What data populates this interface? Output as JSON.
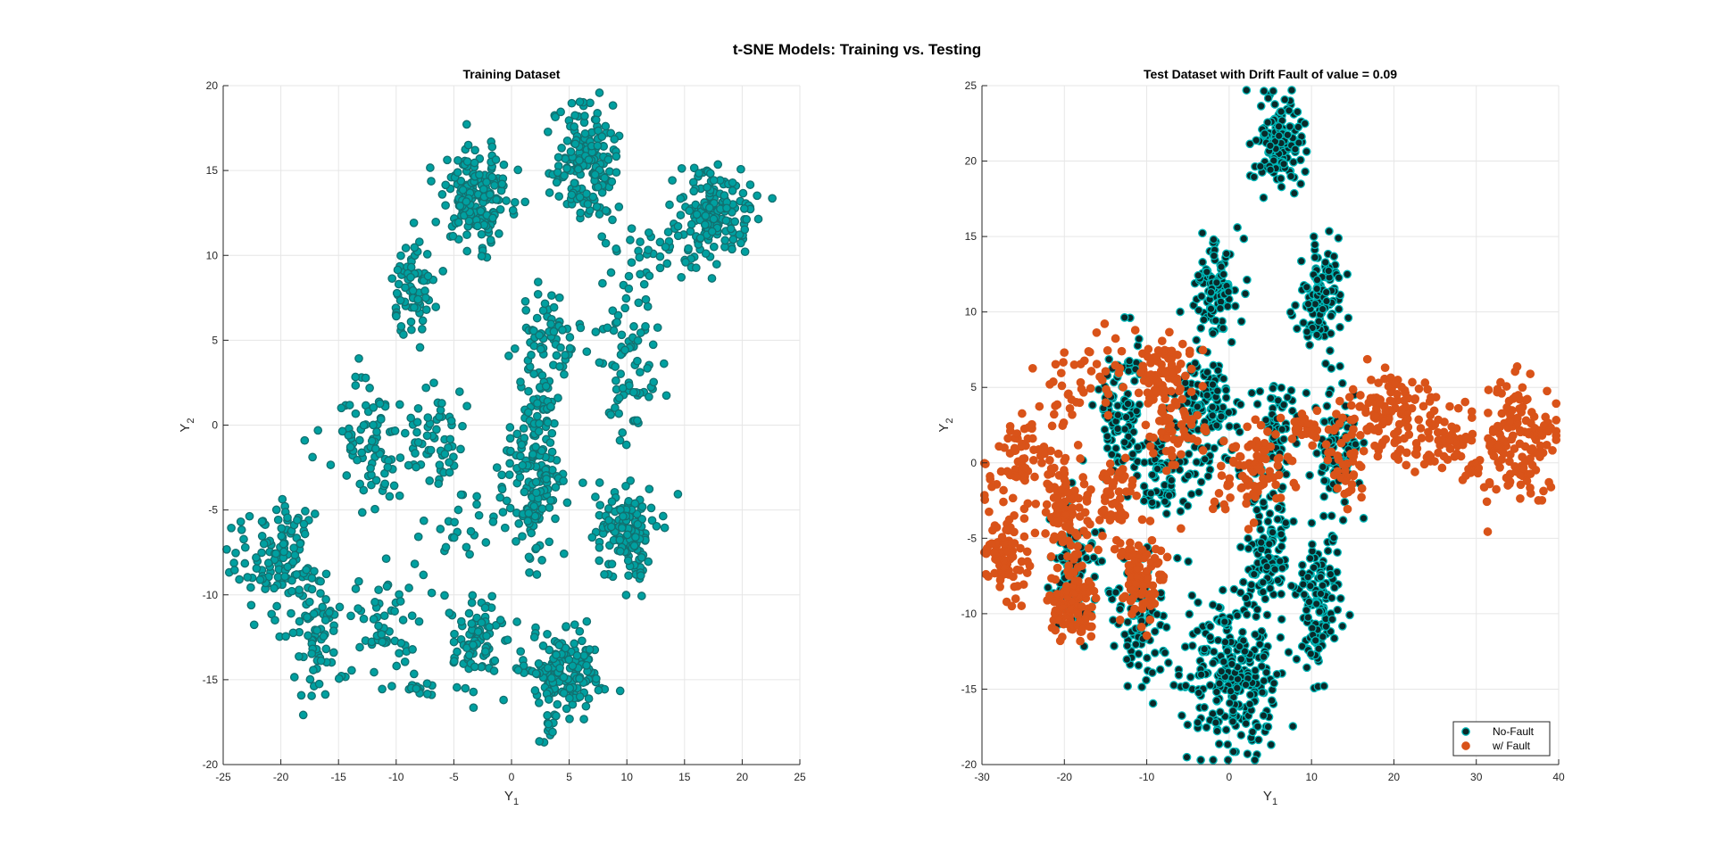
{
  "figure": {
    "title": "t-SNE Models: Training vs. Testing"
  },
  "chart_data": [
    {
      "type": "scatter",
      "title": "Training Dataset",
      "xlabel": "Y",
      "xlabel_sub": "1",
      "ylabel": "Y",
      "ylabel_sub": "2",
      "xlim": [
        -25,
        25
      ],
      "ylim": [
        -20,
        20
      ],
      "xticks": [
        -25,
        -20,
        -15,
        -10,
        -5,
        0,
        5,
        10,
        15,
        20,
        25
      ],
      "yticks": [
        -20,
        -15,
        -10,
        -5,
        0,
        5,
        10,
        15,
        20
      ],
      "grid": true,
      "legend": null,
      "series": [
        {
          "color": "#00a0a0",
          "edge": "#127070",
          "clusters": [
            {
              "cx": -3,
              "cy": 13.5,
              "sx": 1.6,
              "sy": 1.4,
              "n": 180
            },
            {
              "cx": 6.5,
              "cy": 15.5,
              "sx": 1.4,
              "sy": 1.8,
              "n": 170
            },
            {
              "cx": 17.5,
              "cy": 12.5,
              "sx": 1.6,
              "sy": 1.3,
              "n": 170
            },
            {
              "cx": 12,
              "cy": 10,
              "sx": 2.2,
              "sy": 0.8,
              "n": 25
            },
            {
              "cx": -8.5,
              "cy": 8,
              "sx": 1.0,
              "sy": 1.4,
              "n": 70
            },
            {
              "cx": 3,
              "cy": 5,
              "sx": 1.4,
              "sy": 1.6,
              "n": 70
            },
            {
              "cx": 10,
              "cy": 4,
              "sx": 1.4,
              "sy": 2.2,
              "n": 80
            },
            {
              "cx": -12,
              "cy": -1,
              "sx": 2.0,
              "sy": 1.8,
              "n": 90
            },
            {
              "cx": -6.5,
              "cy": -0.5,
              "sx": 1.2,
              "sy": 1.5,
              "n": 50
            },
            {
              "cx": 2,
              "cy": -3.5,
              "sx": 1.2,
              "sy": 2.0,
              "n": 150
            },
            {
              "cx": 10,
              "cy": -6.5,
              "sx": 1.3,
              "sy": 1.5,
              "n": 150
            },
            {
              "cx": -20,
              "cy": -8,
              "sx": 1.6,
              "sy": 1.8,
              "n": 120
            },
            {
              "cx": -17,
              "cy": -12.5,
              "sx": 1.2,
              "sy": 1.5,
              "n": 60
            },
            {
              "cx": -11,
              "cy": -12,
              "sx": 1.3,
              "sy": 1.8,
              "n": 55
            },
            {
              "cx": -3,
              "cy": -13,
              "sx": 1.3,
              "sy": 1.5,
              "n": 80
            },
            {
              "cx": 4.5,
              "cy": -14.5,
              "sx": 1.7,
              "sy": 1.3,
              "n": 160
            },
            {
              "cx": -4,
              "cy": -6,
              "sx": 1.5,
              "sy": 1.2,
              "n": 25
            },
            {
              "cx": 2.5,
              "cy": 1,
              "sx": 0.8,
              "sy": 1.2,
              "n": 30
            },
            {
              "cx": -8.5,
              "cy": -15.5,
              "sx": 0.8,
              "sy": 0.3,
              "n": 15
            },
            {
              "cx": -24,
              "cy": -7.5,
              "sx": 0.6,
              "sy": 1.2,
              "n": 10
            },
            {
              "cx": 3.5,
              "cy": -18,
              "sx": 0.4,
              "sy": 0.6,
              "n": 8
            }
          ]
        }
      ]
    },
    {
      "type": "scatter",
      "title": "Test Dataset with Drift Fault of value = 0.09",
      "xlabel": "Y",
      "xlabel_sub": "1",
      "ylabel": "Y",
      "ylabel_sub": "2",
      "xlim": [
        -30,
        40
      ],
      "ylim": [
        -20,
        25
      ],
      "xticks": [
        -30,
        -20,
        -10,
        0,
        10,
        20,
        30,
        40
      ],
      "yticks": [
        -20,
        -15,
        -10,
        -5,
        0,
        5,
        10,
        15,
        20,
        25
      ],
      "grid": true,
      "legend": "bottom-right",
      "series": [
        {
          "name": "No-Fault",
          "color": "#0a2a2a",
          "edge": "#00b8b8",
          "clusters": [
            {
              "cx": 6,
              "cy": 21,
              "sx": 1.4,
              "sy": 1.6,
              "n": 130
            },
            {
              "cx": 11,
              "cy": 11,
              "sx": 1.3,
              "sy": 2.0,
              "n": 120
            },
            {
              "cx": -1.5,
              "cy": 11.5,
              "sx": 1.4,
              "sy": 1.6,
              "n": 110
            },
            {
              "cx": -3,
              "cy": 3.5,
              "sx": 2.0,
              "sy": 2.0,
              "n": 140
            },
            {
              "cx": -13,
              "cy": 3.5,
              "sx": 1.5,
              "sy": 2.0,
              "n": 100
            },
            {
              "cx": 5.5,
              "cy": 2,
              "sx": 1.2,
              "sy": 1.8,
              "n": 60
            },
            {
              "cx": 13,
              "cy": 1,
              "sx": 1.3,
              "sy": 1.8,
              "n": 90
            },
            {
              "cx": -8,
              "cy": -1,
              "sx": 1.6,
              "sy": 1.2,
              "n": 70
            },
            {
              "cx": 4.5,
              "cy": -6,
              "sx": 1.2,
              "sy": 2.0,
              "n": 110
            },
            {
              "cx": 11,
              "cy": -9,
              "sx": 1.4,
              "sy": 2.2,
              "n": 130
            },
            {
              "cx": -19,
              "cy": -7,
              "sx": 1.5,
              "sy": 2.0,
              "n": 90
            },
            {
              "cx": -11,
              "cy": -10,
              "sx": 1.6,
              "sy": 2.0,
              "n": 90
            },
            {
              "cx": 0.5,
              "cy": -14,
              "sx": 3.2,
              "sy": 2.6,
              "n": 260
            }
          ]
        },
        {
          "name": "w/ Fault",
          "color": "#d95319",
          "edge": "#d95319",
          "clusters": [
            {
              "cx": -27,
              "cy": -6,
              "sx": 1.2,
              "sy": 1.5,
              "n": 80
            },
            {
              "cx": -25,
              "cy": 0,
              "sx": 2.4,
              "sy": 1.8,
              "n": 70
            },
            {
              "cx": -20,
              "cy": -3.5,
              "sx": 1.2,
              "sy": 2.0,
              "n": 100
            },
            {
              "cx": -19,
              "cy": -9.5,
              "sx": 1.4,
              "sy": 1.2,
              "n": 90
            },
            {
              "cx": -10.5,
              "cy": -7.5,
              "sx": 1.4,
              "sy": 1.6,
              "n": 90
            },
            {
              "cx": -17,
              "cy": 5.5,
              "sx": 2.5,
              "sy": 1.5,
              "n": 45
            },
            {
              "cx": -8,
              "cy": 6,
              "sx": 1.8,
              "sy": 1.6,
              "n": 80
            },
            {
              "cx": -14,
              "cy": -2.5,
              "sx": 1.5,
              "sy": 1.5,
              "n": 50
            },
            {
              "cx": -6,
              "cy": 2,
              "sx": 1.8,
              "sy": 1.2,
              "n": 50
            },
            {
              "cx": 2.5,
              "cy": -0.5,
              "sx": 2.2,
              "sy": 1.4,
              "n": 80
            },
            {
              "cx": 9,
              "cy": 2,
              "sx": 2.0,
              "sy": 1.0,
              "n": 40
            },
            {
              "cx": 19,
              "cy": 3,
              "sx": 2.4,
              "sy": 1.5,
              "n": 110
            },
            {
              "cx": 26,
              "cy": 1.5,
              "sx": 2.5,
              "sy": 1.6,
              "n": 80
            },
            {
              "cx": 35,
              "cy": 1.5,
              "sx": 2.5,
              "sy": 2.0,
              "n": 150
            },
            {
              "cx": 15,
              "cy": 0,
              "sx": 1.2,
              "sy": 1.2,
              "n": 30
            }
          ]
        }
      ]
    }
  ]
}
